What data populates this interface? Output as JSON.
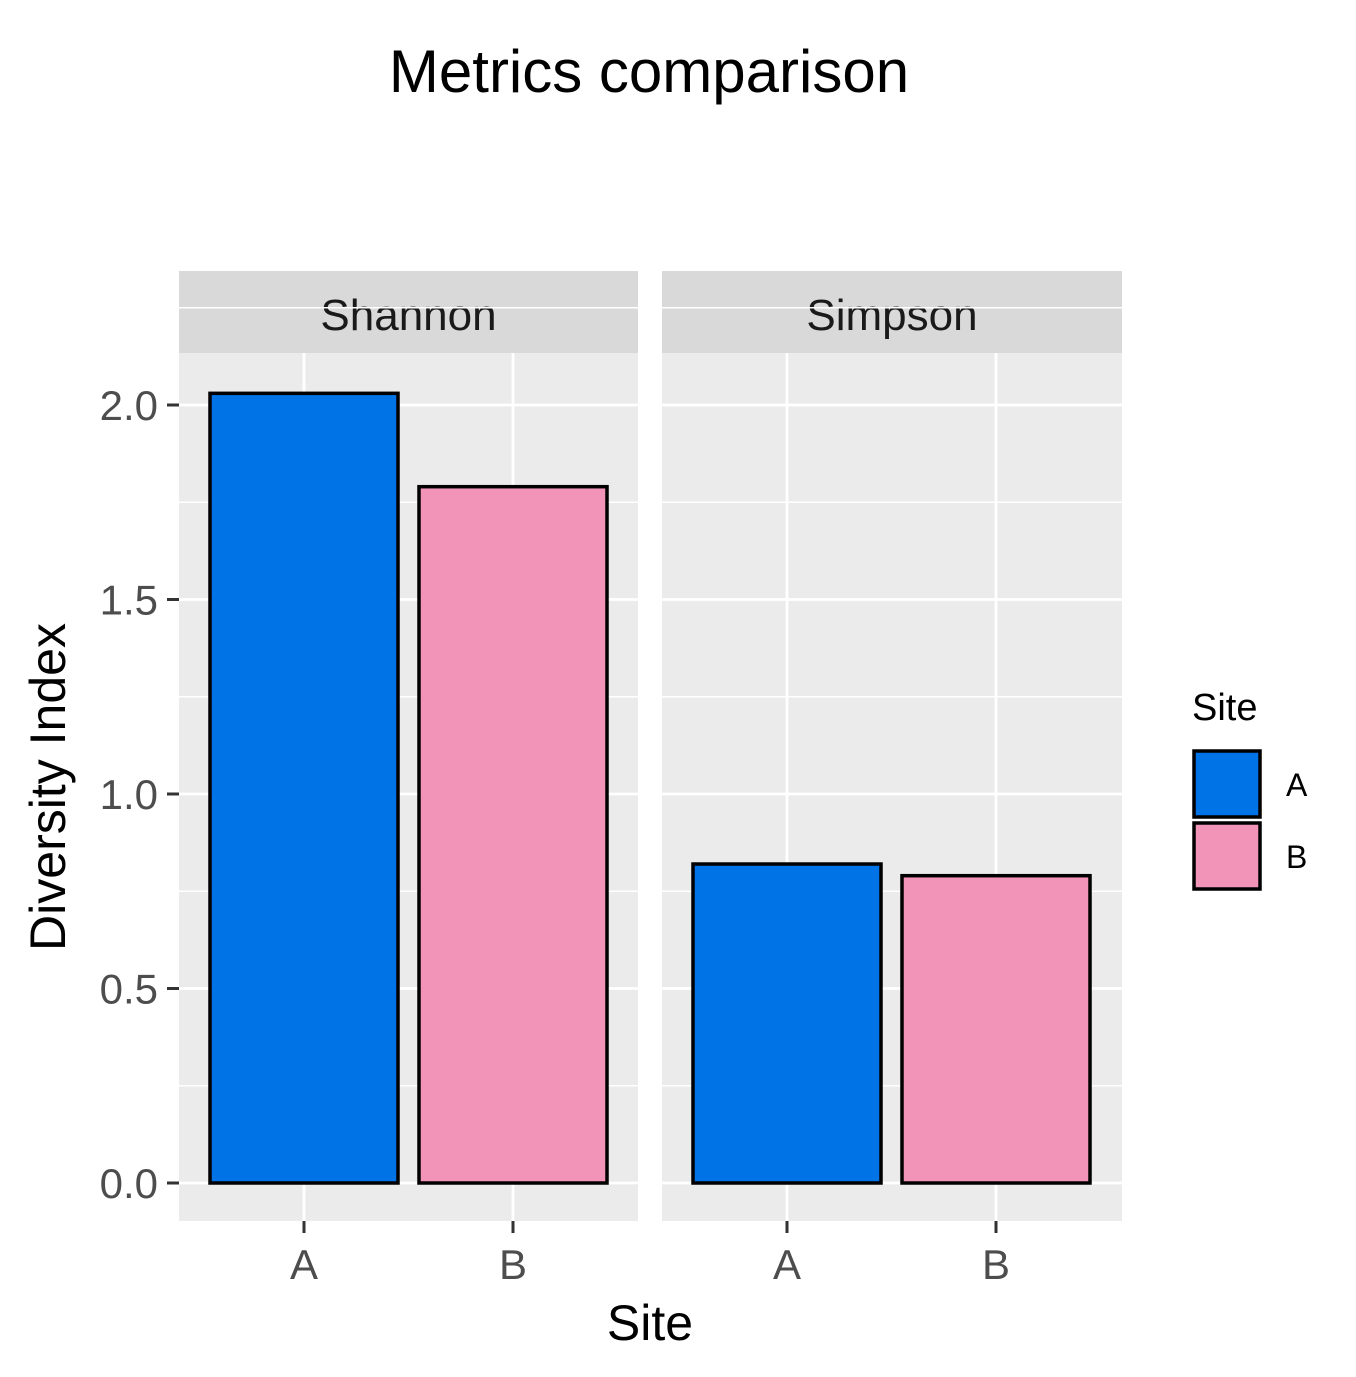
{
  "chart_data": {
    "type": "bar",
    "title": "Metrics comparison",
    "xlabel": "Site",
    "ylabel": "Diversity Index",
    "ylim": [
      -0.1,
      2.35
    ],
    "y_ticks": [
      "0.0",
      "0.5",
      "1.0",
      "1.5",
      "2.0"
    ],
    "grid": true,
    "legend_placement": "right",
    "legend_title": "Site",
    "categories": [
      "A",
      "B"
    ],
    "facets": [
      {
        "name": "Shannon",
        "values": [
          2.03,
          1.79
        ]
      },
      {
        "name": "Simpson",
        "values": [
          0.82,
          0.79
        ]
      }
    ],
    "colors": {
      "A": "#0073E6",
      "B": "#F194B8"
    },
    "panel_background": "#EBEBEB",
    "strip_background": "#D9D9D9"
  }
}
